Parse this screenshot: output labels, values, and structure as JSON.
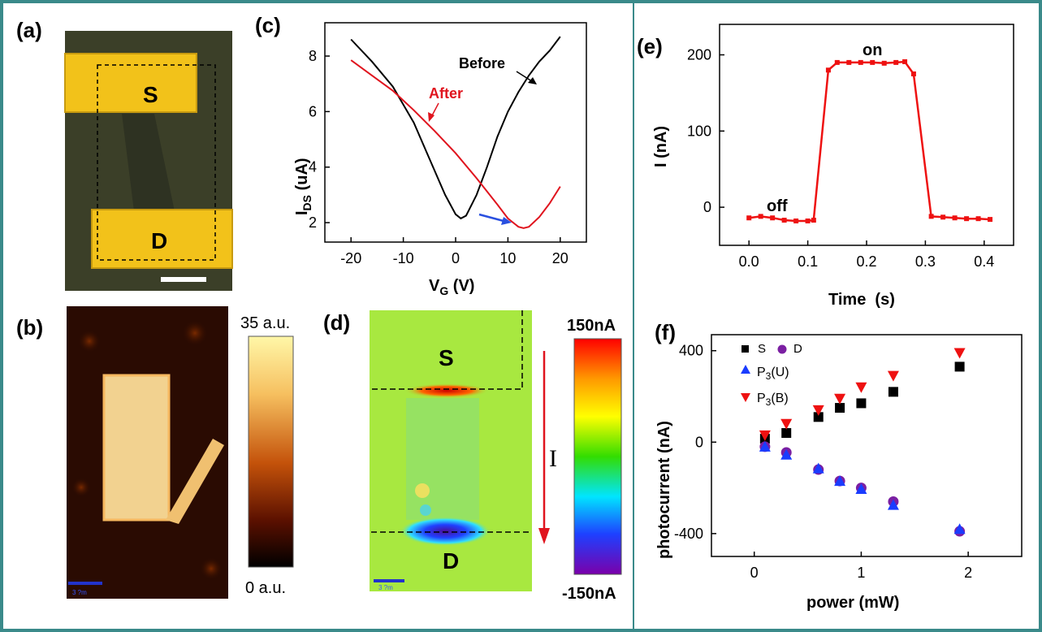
{
  "panels": {
    "a": {
      "label": "(a)",
      "source_label": "S",
      "drain_label": "D"
    },
    "b": {
      "label": "(b)",
      "scale_max": "35 a.u.",
      "scale_min": "0 a.u.",
      "scalebar_text": "3 ?m"
    },
    "c": {
      "label": "(c)"
    },
    "d": {
      "label": "(d)",
      "source_label": "S",
      "drain_label": "D",
      "current_label": "I",
      "scale_max": "150nA",
      "scale_min": "-150nA",
      "scalebar_text": "3 ?m"
    },
    "e": {
      "label": "(e)"
    },
    "f": {
      "label": "(f)"
    }
  },
  "colors": {
    "border": "#3a8a8a",
    "gold": "#f2c21a",
    "red_curve": "#e0141e",
    "black_curve": "#000000",
    "blue_arrow": "#2a50e0",
    "purple": "#7b1fa2",
    "blue": "#1a3cff",
    "red_marker": "#ee1111"
  },
  "chart_data": [
    {
      "panel": "c",
      "type": "line",
      "xlabel": "V_G (V)",
      "ylabel": "I_DS (uA)",
      "xlim": [
        -25,
        25
      ],
      "ylim": [
        1.3,
        9.2
      ],
      "xticks": [
        -20,
        -10,
        0,
        10,
        20
      ],
      "yticks": [
        2,
        4,
        6,
        8
      ],
      "annotations": [
        "Before",
        "After"
      ],
      "series": [
        {
          "name": "Before",
          "x": [
            -20,
            -16,
            -12,
            -8,
            -5,
            -2,
            0,
            1,
            2,
            4,
            6,
            8,
            10,
            12,
            14,
            16,
            18,
            20
          ],
          "y": [
            8.6,
            7.8,
            6.9,
            5.6,
            4.3,
            3.0,
            2.3,
            2.15,
            2.25,
            3.0,
            4.0,
            5.1,
            6.0,
            6.7,
            7.3,
            7.8,
            8.2,
            8.7
          ]
        },
        {
          "name": "After",
          "x": [
            -20,
            -16,
            -12,
            -8,
            -4,
            0,
            4,
            8,
            10,
            12,
            13,
            14,
            16,
            18,
            20
          ],
          "y": [
            7.85,
            7.3,
            6.75,
            6.05,
            5.3,
            4.5,
            3.6,
            2.65,
            2.15,
            1.85,
            1.8,
            1.85,
            2.2,
            2.7,
            3.3
          ]
        }
      ]
    },
    {
      "panel": "e",
      "type": "line",
      "xlabel": "Time  (s)",
      "ylabel": "I (nA)",
      "xlim": [
        -0.05,
        0.45
      ],
      "ylim": [
        -50,
        240
      ],
      "xticks": [
        0.0,
        0.1,
        0.2,
        0.3,
        0.4
      ],
      "yticks": [
        0,
        100,
        200
      ],
      "annotations": [
        "on",
        "off"
      ],
      "series": [
        {
          "name": "",
          "x": [
            0.0,
            0.02,
            0.04,
            0.06,
            0.08,
            0.1,
            0.11,
            0.135,
            0.15,
            0.17,
            0.19,
            0.21,
            0.23,
            0.25,
            0.265,
            0.28,
            0.31,
            0.33,
            0.35,
            0.37,
            0.39,
            0.41
          ],
          "y": [
            -14,
            -12,
            -14,
            -17,
            -18,
            -18,
            -17,
            180,
            190,
            190,
            190,
            190,
            189,
            190,
            191,
            175,
            -12,
            -13,
            -14,
            -15,
            -15,
            -16
          ]
        }
      ]
    },
    {
      "panel": "f",
      "type": "scatter",
      "xlabel": "power (mW)",
      "ylabel": "photocurrent (nA)",
      "xlim": [
        -0.4,
        2.5
      ],
      "ylim": [
        -500,
        470
      ],
      "xticks": [
        0,
        1,
        2
      ],
      "yticks": [
        -400,
        0,
        400
      ],
      "series": [
        {
          "name": "S",
          "marker": "square",
          "x": [
            0.1,
            0.3,
            0.6,
            0.8,
            1.0,
            1.3,
            1.92
          ],
          "y": [
            15,
            40,
            110,
            150,
            170,
            220,
            330
          ]
        },
        {
          "name": "D",
          "marker": "circle",
          "x": [
            0.1,
            0.3,
            0.6,
            0.8,
            1.0,
            1.3,
            1.92
          ],
          "y": [
            -20,
            -45,
            -120,
            -170,
            -200,
            -260,
            -390
          ]
        },
        {
          "name": "P3(U)",
          "marker": "triangle",
          "x": [
            0.1,
            0.3,
            0.6,
            0.8,
            1.0,
            1.3,
            1.92
          ],
          "y": [
            -20,
            -55,
            -115,
            -170,
            -205,
            -275,
            -380
          ]
        },
        {
          "name": "P3(B)",
          "marker": "triangle-down",
          "x": [
            0.1,
            0.3,
            0.6,
            0.8,
            1.0,
            1.3,
            1.92
          ],
          "y": [
            30,
            80,
            140,
            190,
            240,
            290,
            390
          ]
        }
      ]
    }
  ]
}
